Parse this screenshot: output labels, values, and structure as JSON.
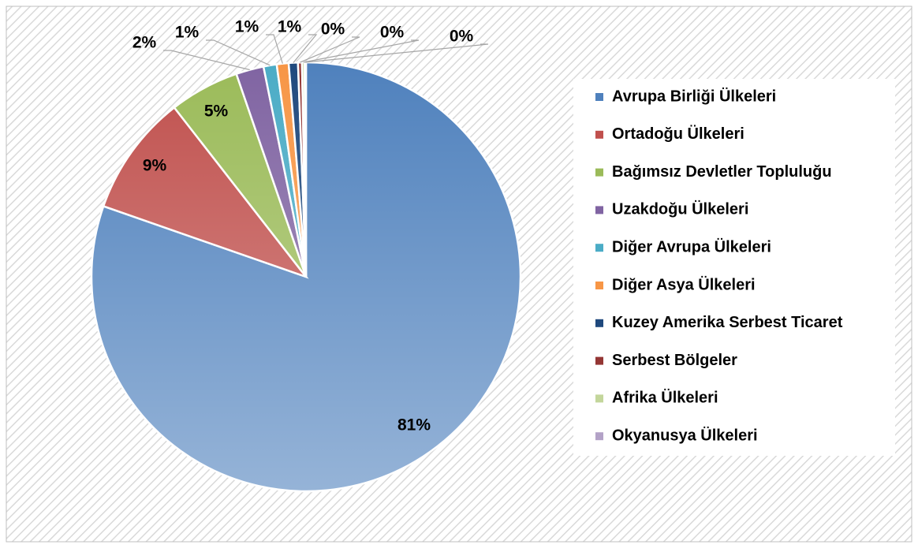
{
  "chart_data": {
    "type": "pie",
    "categories": [
      "Avrupa Birliği Ülkeleri",
      "Ortadoğu Ülkeleri",
      "Bağımsız Devletler Topluluğu",
      "Uzakdoğu Ülkeleri",
      "Diğer Avrupa Ülkeleri",
      "Diğer Asya Ülkeleri",
      "Kuzey Amerika Serbest Ticaret",
      "Serbest Bölgeler",
      "Afrika Ülkeleri",
      "Okyanusya Ülkeleri"
    ],
    "values": [
      80.9,
      9.2,
      5.3,
      2.1,
      1.0,
      0.9,
      0.7,
      0.3,
      0.2,
      0.1
    ],
    "value_labels": [
      "81%",
      "9%",
      "5%",
      "2%",
      "1%",
      "1%",
      "1%",
      "0%",
      "0%",
      "0%"
    ],
    "colors": [
      "#4f81bd",
      "#c0504d",
      "#9bbb59",
      "#8064a2",
      "#4bacc6",
      "#f79646",
      "#1f497d",
      "#943634",
      "#c3d69b",
      "#b3a2c7"
    ]
  }
}
